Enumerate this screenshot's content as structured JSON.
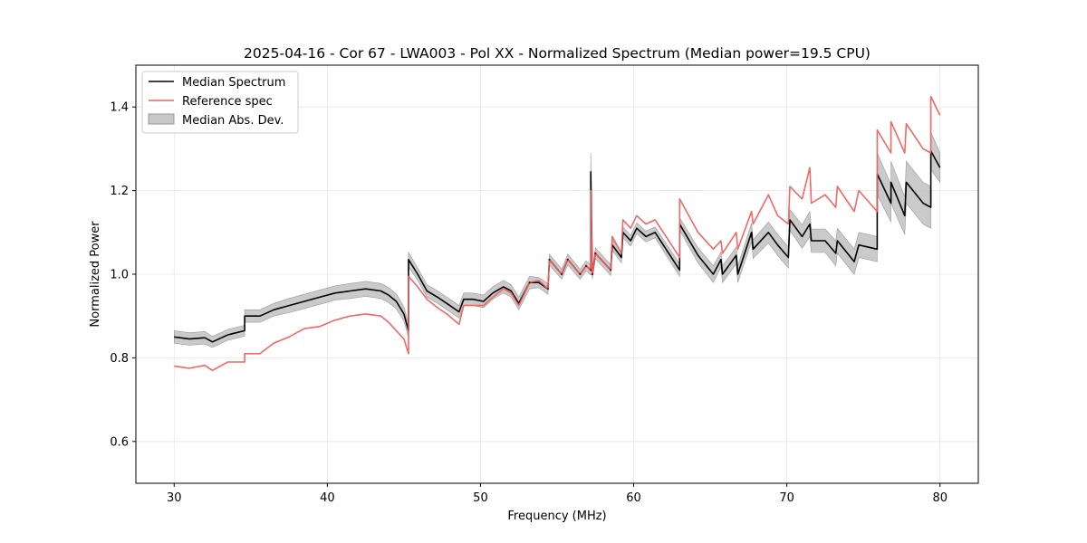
{
  "chart_data": {
    "type": "line",
    "title": "2025-04-16 - Cor 67 - LWA003 - Pol XX - Normalized Spectrum (Median power=19.5 CPU)",
    "xlabel": "Frequency (MHz)",
    "ylabel": "Normalized Power",
    "xlim": [
      27.5,
      82.5
    ],
    "ylim": [
      0.5,
      1.5
    ],
    "xticks": [
      30,
      40,
      50,
      60,
      70,
      80
    ],
    "yticks": [
      0.6,
      0.8,
      1.0,
      1.2,
      1.4
    ],
    "xtick_labels": [
      "30",
      "40",
      "50",
      "60",
      "70",
      "80"
    ],
    "ytick_labels": [
      "0.6",
      "0.8",
      "1.0",
      "1.2",
      "1.4"
    ],
    "grid": true,
    "legend_position": "top-left",
    "legend": [
      "Median Spectrum",
      "Reference spec",
      "Median Abs. Dev."
    ],
    "colors": {
      "median": "#000000",
      "reference": "#f06060",
      "band": "#b8b8b8",
      "band_edge": "#999999",
      "overlap": "#7a0000"
    },
    "series": [
      {
        "name": "Median Spectrum",
        "x": [
          30.0,
          31.0,
          32.0,
          32.5,
          33.5,
          34.6,
          34.6,
          35.6,
          36.5,
          37.5,
          38.5,
          39.5,
          40.5,
          41.5,
          42.5,
          43.5,
          44.0,
          44.5,
          45.0,
          45.3,
          45.3,
          45.9,
          46.5,
          47.2,
          47.8,
          48.6,
          48.9,
          49.5,
          50.2,
          50.8,
          51.5,
          52.0,
          52.5,
          53.2,
          53.8,
          54.4,
          54.5,
          55.3,
          55.7,
          56.5,
          56.9,
          57.2,
          57.2,
          57.3,
          57.5,
          58.5,
          58.6,
          59.2,
          59.3,
          59.8,
          60.2,
          60.8,
          61.4,
          63.0,
          63.0,
          64.2,
          65.2,
          65.7,
          65.8,
          66.7,
          66.8,
          67.7,
          67.8,
          68.8,
          69.4,
          70.1,
          70.2,
          71.0,
          71.5,
          71.6,
          72.5,
          73.2,
          73.3,
          74.4,
          74.7,
          75.9,
          75.9,
          76.8,
          76.8,
          77.7,
          77.8,
          78.9,
          79.4,
          79.4,
          80.0
        ],
        "values": [
          0.85,
          0.845,
          0.848,
          0.838,
          0.855,
          0.865,
          0.9,
          0.9,
          0.915,
          0.925,
          0.935,
          0.945,
          0.955,
          0.96,
          0.965,
          0.96,
          0.95,
          0.935,
          0.905,
          0.865,
          1.035,
          1.0,
          0.96,
          0.945,
          0.93,
          0.91,
          0.94,
          0.94,
          0.935,
          0.955,
          0.97,
          0.96,
          0.93,
          0.98,
          0.98,
          0.965,
          1.035,
          1.0,
          1.035,
          1.0,
          1.02,
          1.01,
          1.245,
          1.0,
          1.05,
          1.01,
          1.07,
          1.04,
          1.1,
          1.08,
          1.11,
          1.09,
          1.1,
          1.01,
          1.12,
          1.045,
          1.0,
          1.035,
          1.0,
          1.045,
          1.0,
          1.1,
          1.06,
          1.1,
          1.07,
          1.04,
          1.13,
          1.09,
          1.12,
          1.08,
          1.08,
          1.05,
          1.08,
          1.03,
          1.07,
          1.06,
          1.24,
          1.17,
          1.22,
          1.14,
          1.22,
          1.17,
          1.16,
          1.295,
          1.255
        ]
      },
      {
        "name": "Reference spec",
        "x": [
          30.0,
          31.0,
          32.0,
          32.5,
          33.5,
          34.6,
          34.6,
          35.6,
          36.5,
          37.5,
          38.5,
          39.5,
          40.5,
          41.5,
          42.5,
          43.5,
          44.0,
          44.5,
          45.0,
          45.3,
          45.3,
          45.9,
          46.5,
          47.2,
          47.8,
          48.6,
          48.9,
          49.5,
          50.2,
          50.8,
          51.5,
          52.0,
          52.5,
          53.2,
          53.8,
          54.4,
          54.5,
          55.3,
          55.7,
          56.5,
          56.9,
          57.2,
          57.2,
          57.3,
          57.5,
          58.5,
          58.6,
          59.2,
          59.3,
          59.8,
          60.2,
          60.8,
          61.4,
          63.0,
          63.0,
          64.2,
          65.2,
          65.7,
          65.8,
          66.7,
          66.8,
          67.7,
          67.8,
          68.8,
          69.4,
          70.1,
          70.2,
          71.0,
          71.5,
          71.6,
          72.5,
          73.2,
          73.3,
          74.4,
          74.7,
          75.9,
          75.9,
          76.8,
          76.8,
          77.7,
          77.8,
          78.9,
          79.4,
          79.4,
          80.0
        ],
        "values": [
          0.78,
          0.775,
          0.782,
          0.77,
          0.79,
          0.79,
          0.81,
          0.81,
          0.835,
          0.85,
          0.87,
          0.875,
          0.89,
          0.9,
          0.905,
          0.9,
          0.885,
          0.865,
          0.845,
          0.81,
          0.995,
          0.97,
          0.94,
          0.92,
          0.905,
          0.88,
          0.925,
          0.925,
          0.925,
          0.945,
          0.965,
          0.955,
          0.925,
          0.98,
          0.985,
          0.965,
          1.035,
          1.0,
          1.035,
          1.0,
          1.02,
          1.01,
          1.2,
          1.0,
          1.05,
          1.01,
          1.09,
          1.05,
          1.13,
          1.11,
          1.14,
          1.12,
          1.13,
          1.04,
          1.18,
          1.1,
          1.06,
          1.08,
          1.05,
          1.1,
          1.06,
          1.15,
          1.12,
          1.19,
          1.14,
          1.12,
          1.21,
          1.18,
          1.255,
          1.17,
          1.19,
          1.16,
          1.21,
          1.15,
          1.2,
          1.15,
          1.345,
          1.29,
          1.365,
          1.29,
          1.36,
          1.3,
          1.29,
          1.425,
          1.38
        ]
      },
      {
        "name": "Median Abs. Dev.",
        "x": [
          30.0,
          31.0,
          32.0,
          32.5,
          33.5,
          34.6,
          34.6,
          35.6,
          36.5,
          37.5,
          38.5,
          39.5,
          40.5,
          41.5,
          42.5,
          43.5,
          44.0,
          44.5,
          45.0,
          45.3,
          45.3,
          45.9,
          46.5,
          47.2,
          47.8,
          48.6,
          48.9,
          49.5,
          50.2,
          50.8,
          51.5,
          52.0,
          52.5,
          53.2,
          53.8,
          54.4,
          54.5,
          55.3,
          55.7,
          56.5,
          56.9,
          57.2,
          57.2,
          57.3,
          57.5,
          58.5,
          58.6,
          59.2,
          59.3,
          59.8,
          60.2,
          60.8,
          61.4,
          63.0,
          63.0,
          64.2,
          65.2,
          65.7,
          65.8,
          66.7,
          66.8,
          67.7,
          67.8,
          68.8,
          69.4,
          70.1,
          70.2,
          71.0,
          71.5,
          71.6,
          72.5,
          73.2,
          73.3,
          74.4,
          74.7,
          75.9,
          75.9,
          76.8,
          76.8,
          77.7,
          77.8,
          78.9,
          79.4,
          79.4,
          80.0
        ],
        "lower": [
          0.835,
          0.83,
          0.833,
          0.825,
          0.842,
          0.852,
          0.885,
          0.885,
          0.9,
          0.908,
          0.918,
          0.928,
          0.938,
          0.942,
          0.947,
          0.942,
          0.932,
          0.917,
          0.888,
          0.848,
          1.018,
          0.985,
          0.945,
          0.93,
          0.915,
          0.895,
          0.925,
          0.925,
          0.92,
          0.94,
          0.955,
          0.945,
          0.915,
          0.965,
          0.968,
          0.952,
          1.022,
          0.988,
          1.022,
          0.988,
          1.008,
          0.998,
          1.2,
          0.988,
          1.037,
          0.997,
          1.057,
          1.027,
          1.087,
          1.067,
          1.097,
          1.077,
          1.087,
          0.995,
          1.105,
          1.027,
          0.98,
          1.017,
          0.98,
          1.025,
          0.98,
          1.078,
          1.038,
          1.075,
          1.045,
          1.015,
          1.105,
          1.062,
          1.09,
          1.052,
          1.052,
          1.02,
          1.05,
          1.0,
          1.04,
          1.03,
          1.19,
          1.125,
          1.17,
          1.095,
          1.17,
          1.12,
          1.11,
          1.25,
          1.22
        ],
        "upper": [
          0.865,
          0.86,
          0.863,
          0.851,
          0.868,
          0.878,
          0.915,
          0.915,
          0.93,
          0.942,
          0.952,
          0.962,
          0.972,
          0.978,
          0.983,
          0.978,
          0.968,
          0.953,
          0.922,
          0.882,
          1.052,
          1.015,
          0.975,
          0.96,
          0.945,
          0.925,
          0.955,
          0.955,
          0.95,
          0.97,
          0.985,
          0.975,
          0.945,
          0.995,
          0.992,
          0.978,
          1.048,
          1.012,
          1.048,
          1.012,
          1.032,
          1.022,
          1.29,
          1.012,
          1.063,
          1.023,
          1.083,
          1.053,
          1.113,
          1.093,
          1.123,
          1.103,
          1.113,
          1.025,
          1.135,
          1.063,
          1.02,
          1.053,
          1.02,
          1.065,
          1.02,
          1.122,
          1.082,
          1.125,
          1.095,
          1.065,
          1.155,
          1.118,
          1.15,
          1.108,
          1.108,
          1.08,
          1.11,
          1.06,
          1.1,
          1.09,
          1.29,
          1.215,
          1.27,
          1.185,
          1.27,
          1.22,
          1.21,
          1.34,
          1.29
        ]
      }
    ]
  }
}
